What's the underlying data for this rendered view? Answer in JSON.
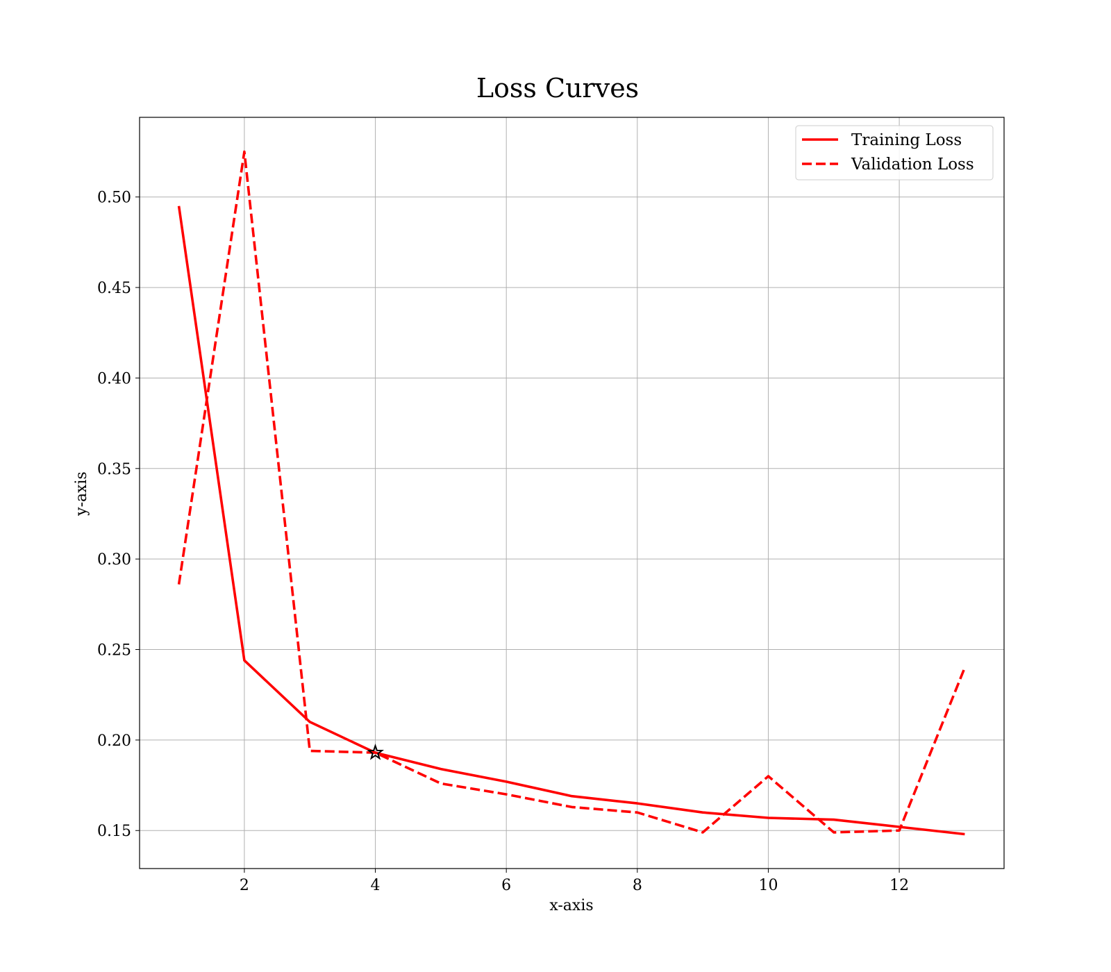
{
  "chart_data": {
    "type": "line",
    "title": "Loss Curves",
    "xlabel": "x-axis",
    "ylabel": "y-axis",
    "xlim": [
      0.4,
      13.6
    ],
    "ylim": [
      0.129,
      0.544
    ],
    "xticks": [
      2,
      4,
      6,
      8,
      10,
      12
    ],
    "xtick_labels": [
      "2",
      "4",
      "6",
      "8",
      "10",
      "12"
    ],
    "yticks": [
      0.15,
      0.2,
      0.25,
      0.3,
      0.35,
      0.4,
      0.45,
      0.5
    ],
    "ytick_labels": [
      "0.15",
      "0.20",
      "0.25",
      "0.30",
      "0.35",
      "0.40",
      "0.45",
      "0.50"
    ],
    "grid": true,
    "legend_position": "top-right",
    "x": [
      1,
      2,
      3,
      4,
      5,
      6,
      7,
      8,
      9,
      10,
      11,
      12,
      13
    ],
    "series": [
      {
        "name": "Training Loss",
        "style": "solid",
        "color": "#ff0000",
        "values": [
          0.495,
          0.244,
          0.21,
          0.193,
          0.184,
          0.177,
          0.169,
          0.165,
          0.16,
          0.157,
          0.156,
          0.152,
          0.148
        ]
      },
      {
        "name": "Validation Loss",
        "style": "dashed",
        "color": "#ff0000",
        "values": [
          0.286,
          0.525,
          0.194,
          0.193,
          0.176,
          0.17,
          0.163,
          0.16,
          0.149,
          0.18,
          0.149,
          0.15,
          0.24
        ]
      }
    ],
    "marker": {
      "shape": "star",
      "x": 4,
      "y": 0.193,
      "color": "#000000"
    }
  }
}
